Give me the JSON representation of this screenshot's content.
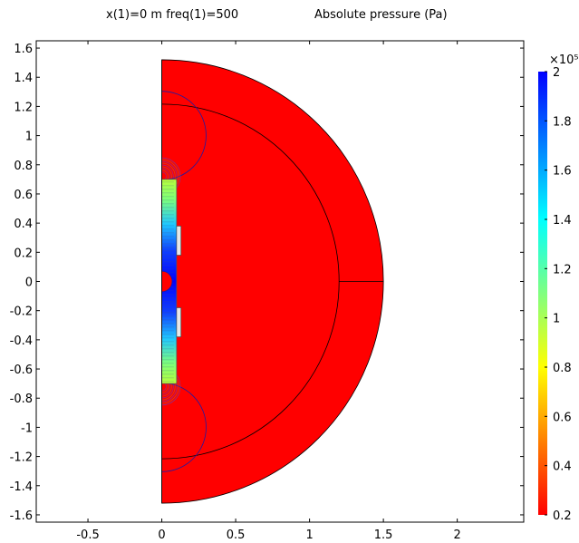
{
  "header": {
    "left_title": "x(1)=0 m freq(1)=500",
    "right_title": "Absolute pressure (Pa)"
  },
  "colorbar": {
    "multiplier": "×10⁵",
    "ticks": [
      2,
      1.8,
      1.6,
      1.4,
      1.2,
      1,
      0.8,
      0.6,
      0.4,
      0.2
    ],
    "tick_labels": [
      "2",
      "1.8",
      "1.6",
      "1.4",
      "1.2",
      "1",
      "0.8",
      "0.6",
      "0.4",
      "0.2"
    ],
    "range": [
      0.2,
      2
    ],
    "colormap": "rainbow",
    "colors": [
      "#ff0000",
      "#ff8000",
      "#ffff00",
      "#80ff80",
      "#00ffff",
      "#0080ff",
      "#0000ff"
    ]
  },
  "chart_data": {
    "type": "heatmap",
    "title": "Absolute pressure (Pa)",
    "subtitle": "x(1)=0 m freq(1)=500",
    "xlim": [
      -0.85,
      2.45
    ],
    "ylim": [
      -1.65,
      1.65
    ],
    "x_ticks": [
      -0.5,
      0,
      0.5,
      1,
      1.5,
      2
    ],
    "x_tick_labels": [
      "-0.5",
      "0",
      "0.5",
      "1",
      "1.5",
      "2"
    ],
    "y_ticks": [
      1.6,
      1.4,
      1.2,
      1,
      0.8,
      0.6,
      0.4,
      0.2,
      0,
      -0.2,
      -0.4,
      -0.6,
      -0.8,
      -1,
      -1.2,
      -1.4,
      -1.6
    ],
    "y_tick_labels": [
      "1.6",
      "1.4",
      "1.2",
      "1",
      "0.8",
      "0.6",
      "0.4",
      "0.2",
      "0",
      "-0.2",
      "-0.4",
      "-0.6",
      "-0.8",
      "-1",
      "-1.2",
      "-1.4",
      "-1.6"
    ],
    "domain": {
      "outer_radius": 1.5,
      "inner_radius": 1.2,
      "background_color": "#ff0000",
      "small_arcs_radius": 0.3,
      "small_arcs_centers_y": [
        1.0,
        -1.0
      ],
      "inner_small_arc_radius": 0.07
    },
    "transducer": {
      "x": [
        0.0,
        0.1
      ],
      "y": [
        -0.7,
        0.7
      ],
      "electrode_x": [
        0.1,
        0.13
      ],
      "electrodes_y": [
        [
          0.18,
          0.38
        ],
        [
          -0.38,
          -0.18
        ]
      ]
    }
  }
}
